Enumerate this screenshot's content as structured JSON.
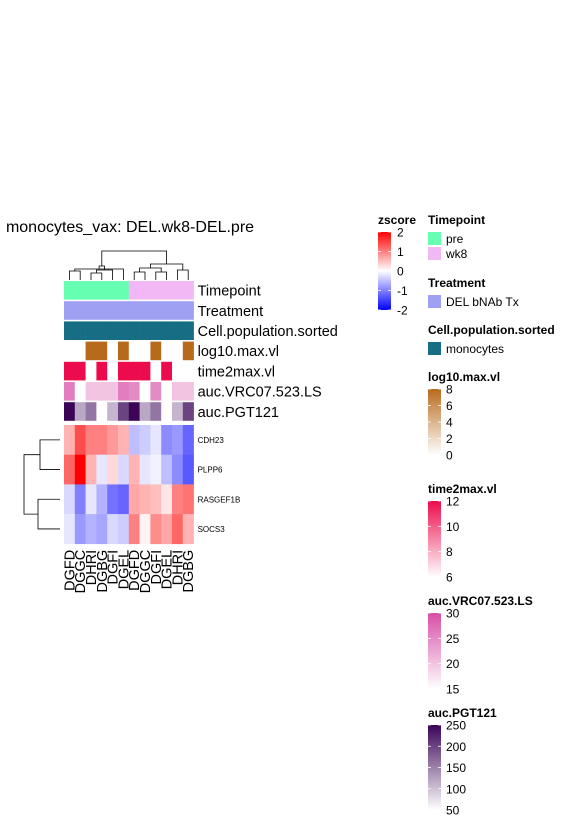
{
  "chart_data": {
    "type": "heatmap",
    "title": "monocytes_vax: DEL.wk8-DEL.pre",
    "columns": [
      "DGFD",
      "DGGC",
      "DHRI",
      "DGBG",
      "DGFI",
      "DGEL",
      "DGFD",
      "DGGC",
      "DGFI",
      "DGEL",
      "DHRI",
      "DGBG"
    ],
    "rows": [
      "CDH23",
      "PLPP6",
      "RASGEF1B",
      "SOCS3"
    ],
    "zscore": [
      [
        0.6,
        1.4,
        1.0,
        1.0,
        0.8,
        0.6,
        -0.5,
        -0.4,
        -0.2,
        -0.9,
        -0.8,
        -1.2
      ],
      [
        1.2,
        2.0,
        0.6,
        -0.2,
        0.3,
        -0.3,
        0.6,
        -0.2,
        -0.1,
        -0.5,
        -0.9,
        -1.3
      ],
      [
        -0.3,
        -1.0,
        -0.2,
        -0.6,
        -1.1,
        -1.2,
        0.7,
        0.6,
        0.5,
        0.2,
        1.0,
        1.1
      ],
      [
        -0.2,
        -0.8,
        -0.6,
        -0.7,
        -0.3,
        -0.4,
        1.0,
        0.1,
        0.9,
        0.7,
        1.2,
        0.6
      ]
    ],
    "annotation_labels": [
      "Timepoint",
      "Treatment",
      "Cell.population.sorted",
      "log10.max.vl",
      "time2max.vl",
      "auc.VRC07.523.LS",
      "auc.PGT121"
    ],
    "annotations": {
      "Timepoint": [
        "pre",
        "pre",
        "pre",
        "pre",
        "pre",
        "pre",
        "wk8",
        "wk8",
        "wk8",
        "wk8",
        "wk8",
        "wk8"
      ],
      "Treatment": [
        "DEL bNAb Tx",
        "DEL bNAb Tx",
        "DEL bNAb Tx",
        "DEL bNAb Tx",
        "DEL bNAb Tx",
        "DEL bNAb Tx",
        "DEL bNAb Tx",
        "DEL bNAb Tx",
        "DEL bNAb Tx",
        "DEL bNAb Tx",
        "DEL bNAb Tx",
        "DEL bNAb Tx"
      ],
      "Cell.population.sorted": [
        "monocytes",
        "monocytes",
        "monocytes",
        "monocytes",
        "monocytes",
        "monocytes",
        "monocytes",
        "monocytes",
        "monocytes",
        "monocytes",
        "monocytes",
        "monocytes"
      ],
      "log10.max.vl": [
        0,
        0,
        8,
        8,
        0,
        8,
        0,
        0,
        8,
        0,
        0,
        8
      ],
      "time2max.vl": [
        12,
        12,
        6,
        12,
        6,
        12,
        12,
        12,
        6,
        12,
        6,
        6
      ],
      "auc.VRC07.523.LS": [
        26,
        15,
        20,
        20,
        20,
        26,
        25,
        15,
        25,
        15,
        20,
        20
      ],
      "auc.PGT121": [
        250,
        120,
        160,
        50,
        110,
        200,
        250,
        120,
        160,
        50,
        110,
        200
      ]
    },
    "legends": [
      {
        "title": "zscore",
        "type": "continuous",
        "range": [
          -2,
          2
        ],
        "ticks": [
          "2",
          "1",
          "0",
          "-1",
          "-2"
        ],
        "colors": [
          "#ff0000",
          "#ffffff",
          "#0000ff"
        ]
      },
      {
        "title": "Timepoint",
        "type": "categorical",
        "items": [
          {
            "label": "pre",
            "color": "#66ffb2"
          },
          {
            "label": "wk8",
            "color": "#f2b8f6"
          }
        ]
      },
      {
        "title": "Treatment",
        "type": "categorical",
        "items": [
          {
            "label": "DEL bNAb Tx",
            "color": "#9f9ff3"
          }
        ]
      },
      {
        "title": "Cell.population.sorted",
        "type": "categorical",
        "items": [
          {
            "label": "monocytes",
            "color": "#176d84"
          }
        ]
      },
      {
        "title": "log10.max.vl",
        "type": "continuous",
        "range": [
          0,
          8
        ],
        "ticks": [
          "8",
          "6",
          "4",
          "2",
          "0"
        ],
        "colors": [
          "#ffffff",
          "#b86a1c"
        ]
      },
      {
        "title": "time2max.vl",
        "type": "continuous",
        "range": [
          6,
          12
        ],
        "ticks": [
          "12",
          "10",
          "8",
          "6"
        ],
        "colors": [
          "#ffffff",
          "#ec0c4e"
        ]
      },
      {
        "title": "auc.VRC07.523.LS",
        "type": "continuous",
        "range": [
          15,
          30
        ],
        "ticks": [
          "30",
          "25",
          "20",
          "15"
        ],
        "colors": [
          "#ffffff",
          "#d74fa7"
        ]
      },
      {
        "title": "auc.PGT121",
        "type": "continuous",
        "range": [
          50,
          250
        ],
        "ticks": [
          "250",
          "200",
          "150",
          "100",
          "50"
        ],
        "colors": [
          "#ffffff",
          "#3b0457"
        ]
      }
    ]
  }
}
